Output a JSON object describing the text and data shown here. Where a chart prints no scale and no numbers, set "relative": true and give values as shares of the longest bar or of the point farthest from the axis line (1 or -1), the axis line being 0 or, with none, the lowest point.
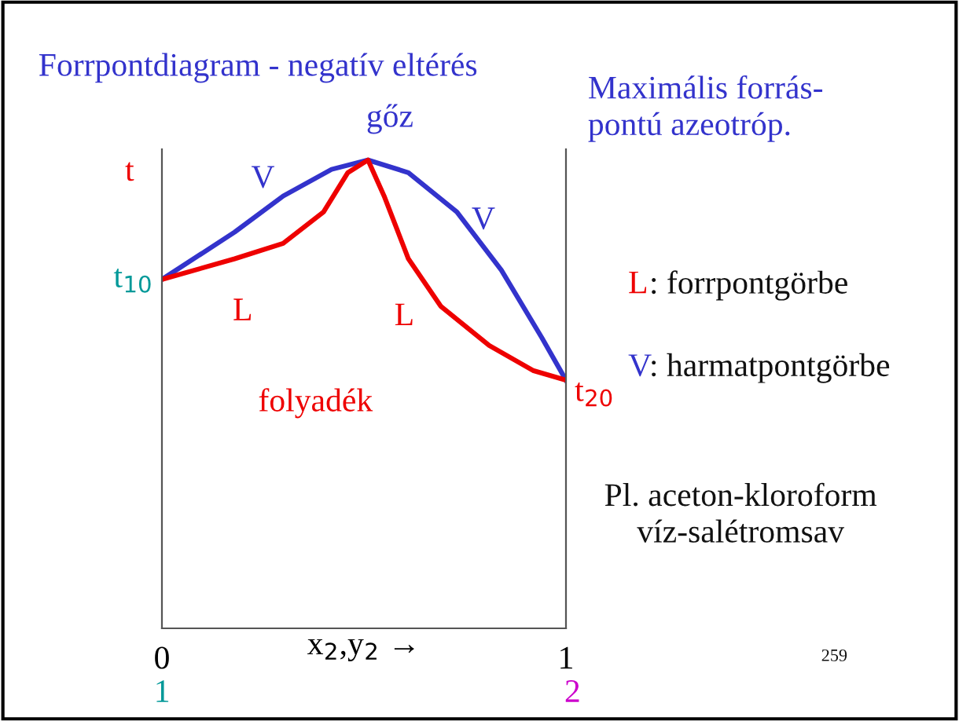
{
  "chart_data": {
    "type": "line",
    "title": "Forrpontdiagram - negatív eltérés",
    "ylabel": "t",
    "xlabel": "x$_{2}$,y$_{2}$ →",
    "relative": true,
    "xlim": [
      0,
      1
    ],
    "xticks": [
      0,
      1
    ],
    "grid": false,
    "legend": false,
    "marker": "none",
    "line_style": "solid",
    "series": [
      {
        "name": "V",
        "color": "#3333cc",
        "x": [
          0,
          0.18,
          0.3,
          0.42,
          0.51,
          0.61,
          0.73,
          0.84,
          0.94,
          1
        ],
        "values": [
          0.745,
          0.846,
          0.923,
          0.98,
          1.0,
          0.973,
          0.889,
          0.765,
          0.621,
          0.53
        ]
      },
      {
        "name": "L",
        "color": "#ee0000",
        "x": [
          0,
          0.18,
          0.3,
          0.4,
          0.46,
          0.51,
          0.55,
          0.61,
          0.69,
          0.81,
          0.92,
          1
        ],
        "values": [
          0.745,
          0.789,
          0.822,
          0.889,
          0.973,
          1.0,
          0.923,
          0.789,
          0.688,
          0.604,
          0.55,
          0.53
        ]
      }
    ],
    "annotations": [
      {
        "text": "t$_{10}$",
        "x": 0,
        "y": 0.745
      },
      {
        "text": "t$_{20}$",
        "x": 1,
        "y": 0.53
      },
      {
        "text": "gőz",
        "x": 0.51,
        "y": 1.0
      },
      "folyadék",
      "Maximális forrás-\npontú azeotróp.",
      "L: forrpontgörbe",
      "V: harmatpontgörbe",
      "Pl. aceton-kloroform\n    víz-salétromsav",
      "1",
      "2",
      "259"
    ]
  }
}
